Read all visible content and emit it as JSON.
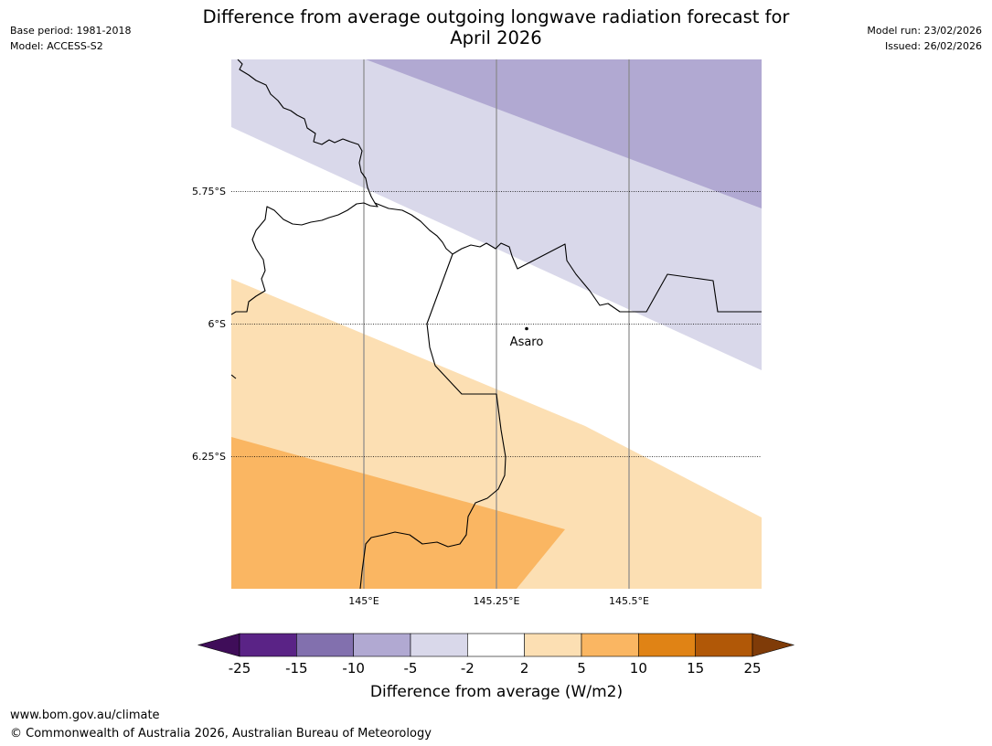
{
  "header": {
    "base_period": "Base period: 1981-2018",
    "model": "Model: ACCESS-S2",
    "title_line1": "Difference from average outgoing longwave radiation forecast for",
    "title_line2": "April 2026",
    "model_run": "Model run: 23/02/2026",
    "issued": "Issued: 26/02/2026"
  },
  "map": {
    "lat_labels": [
      "5.75°S",
      "6°S",
      "6.25°S"
    ],
    "lon_labels": [
      "145°E",
      "145.25°E",
      "145.5°E"
    ],
    "place": {
      "name": "Asaro"
    }
  },
  "colorbar": {
    "ticks": [
      "-25",
      "-15",
      "-10",
      "-5",
      "-2",
      "2",
      "5",
      "10",
      "15",
      "25"
    ],
    "colors": [
      "#3f0d59",
      "#5a2386",
      "#8270ae",
      "#b1a9d2",
      "#d9d8ea",
      "#ffffff",
      "#fcdfb3",
      "#fab662",
      "#e08315",
      "#b15807",
      "#7f3b08"
    ],
    "label": "Difference from average (W/m2)"
  },
  "footer": {
    "url": "www.bom.gov.au/climate",
    "copyright": "© Commonwealth of Australia 2026, Australian Bureau of Meteorology"
  }
}
